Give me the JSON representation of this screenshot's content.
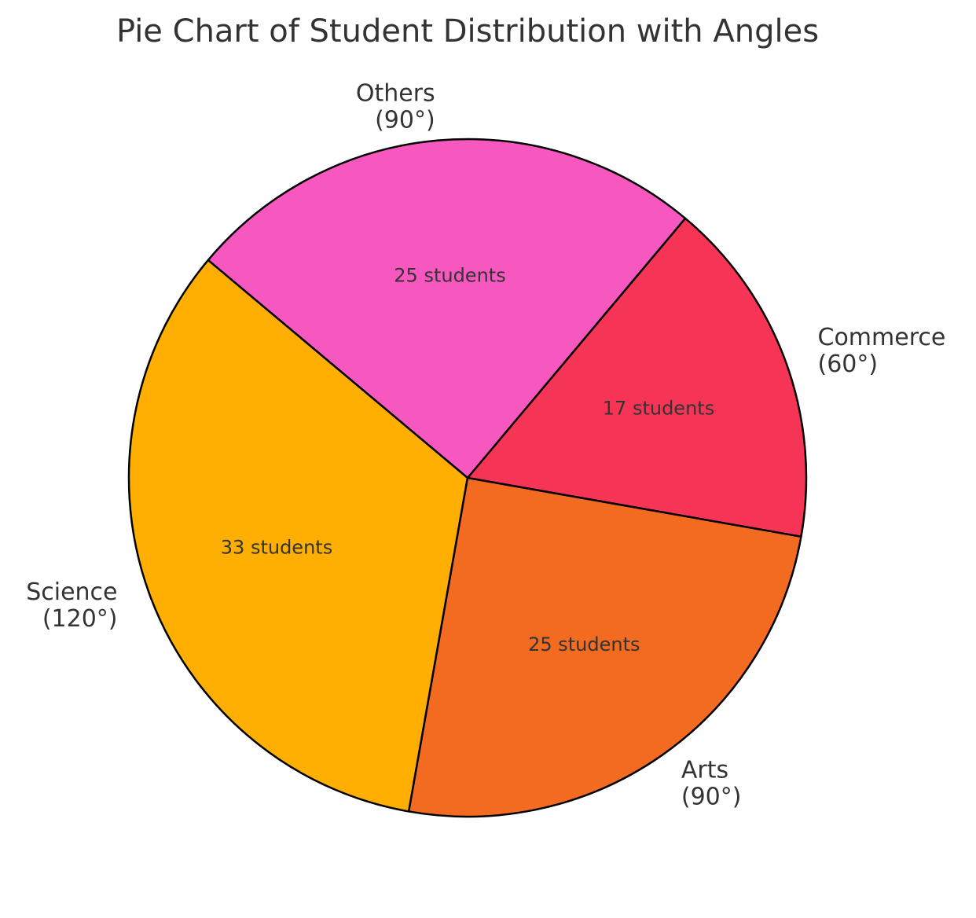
{
  "chart_data": {
    "type": "pie",
    "title": "Pie Chart of Student Distribution with Angles",
    "slices": [
      {
        "category": "Commerce",
        "angle_label": "(60°)",
        "angle": 60,
        "value": 17,
        "value_label": "17 students",
        "color": "#F53456"
      },
      {
        "category": "Others",
        "angle_label": "(90°)",
        "angle": 90,
        "value": 25,
        "value_label": "25 students",
        "color": "#F758BF"
      },
      {
        "category": "Science",
        "angle_label": "(120°)",
        "angle": 120,
        "value": 33,
        "value_label": "33 students",
        "color": "#FFAE02"
      },
      {
        "category": "Arts",
        "angle_label": "(90°)",
        "angle": 90,
        "value": 25,
        "value_label": "25 students",
        "color": "#F26B21"
      }
    ],
    "start_angle_deg": -10,
    "direction": "counterclockwise",
    "edge_color": "#000000",
    "legend": "none"
  }
}
